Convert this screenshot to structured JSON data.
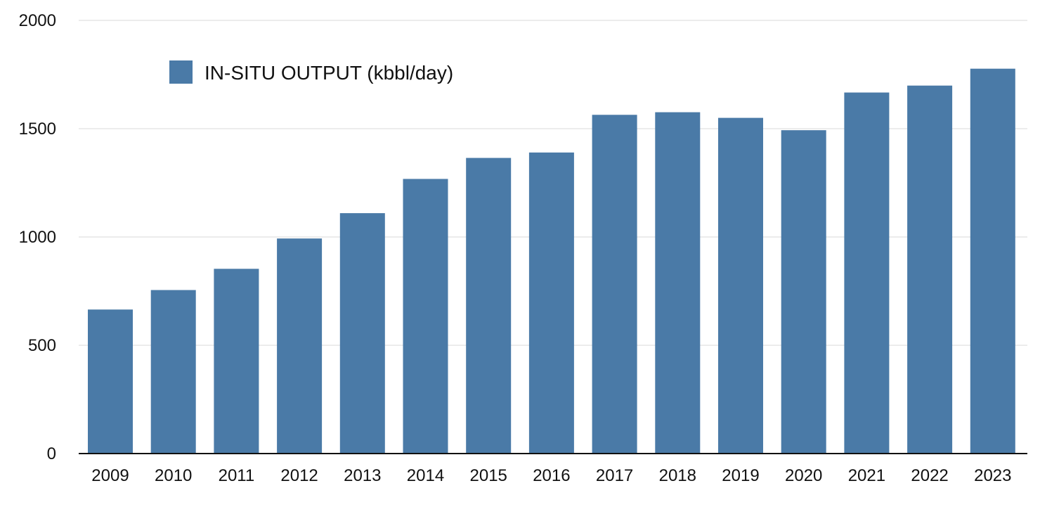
{
  "chart_data": {
    "type": "bar",
    "categories": [
      "2009",
      "2010",
      "2011",
      "2012",
      "2013",
      "2014",
      "2015",
      "2016",
      "2017",
      "2018",
      "2019",
      "2020",
      "2021",
      "2022",
      "2023"
    ],
    "series": [
      {
        "name": "IN-SITU OUTPUT (kbbl/day)",
        "color": "#4a7aa7",
        "values": [
          665,
          755,
          853,
          993,
          1110,
          1268,
          1365,
          1390,
          1564,
          1576,
          1550,
          1493,
          1667,
          1699,
          1777
        ]
      }
    ],
    "title": "",
    "xlabel": "",
    "ylabel": "",
    "ylim": [
      0,
      2000
    ],
    "yticks": [
      0,
      500,
      1000,
      1500,
      2000
    ],
    "grid": true,
    "legend_position": "top-left"
  }
}
